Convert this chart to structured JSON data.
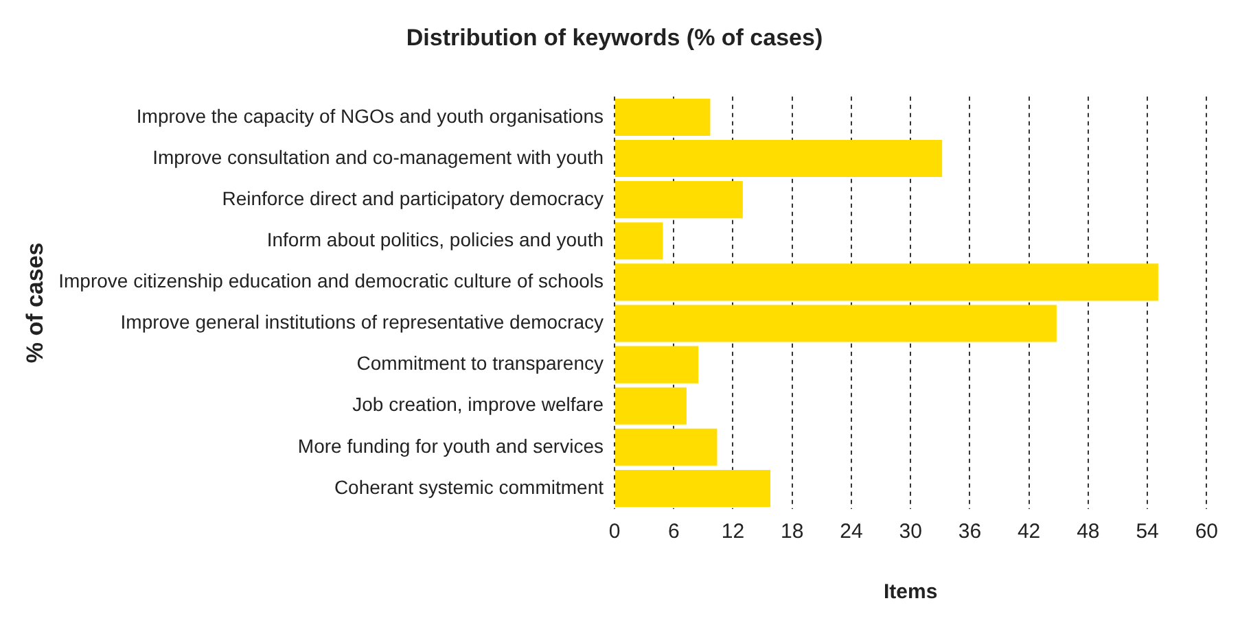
{
  "chart_data": {
    "type": "bar",
    "orientation": "horizontal",
    "title": "Distribution of keywords (% of cases)",
    "xlabel": "Items",
    "ylabel": "% of cases",
    "categories": [
      "Improve the capacity of NGOs and youth organisations",
      "Improve consultation and co-management with youth",
      "Reinforce direct and participatory democracy",
      "Inform about politics, policies and youth",
      "Improve citizenship education and democratic culture of schools",
      "Improve general institutions of representative democracy",
      "Commitment to transparency",
      "Job creation, improve welfare",
      "More funding for youth and services",
      "Coherant systemic commitment"
    ],
    "values": [
      9.7,
      33.2,
      13.0,
      4.9,
      55.1,
      44.8,
      8.5,
      7.3,
      10.4,
      15.8
    ],
    "color": "#ffdd00",
    "xlim": [
      0,
      60
    ],
    "xticks": [
      0,
      6,
      12,
      18,
      24,
      30,
      36,
      42,
      48,
      54,
      60
    ],
    "grid": "x",
    "legend": false
  }
}
